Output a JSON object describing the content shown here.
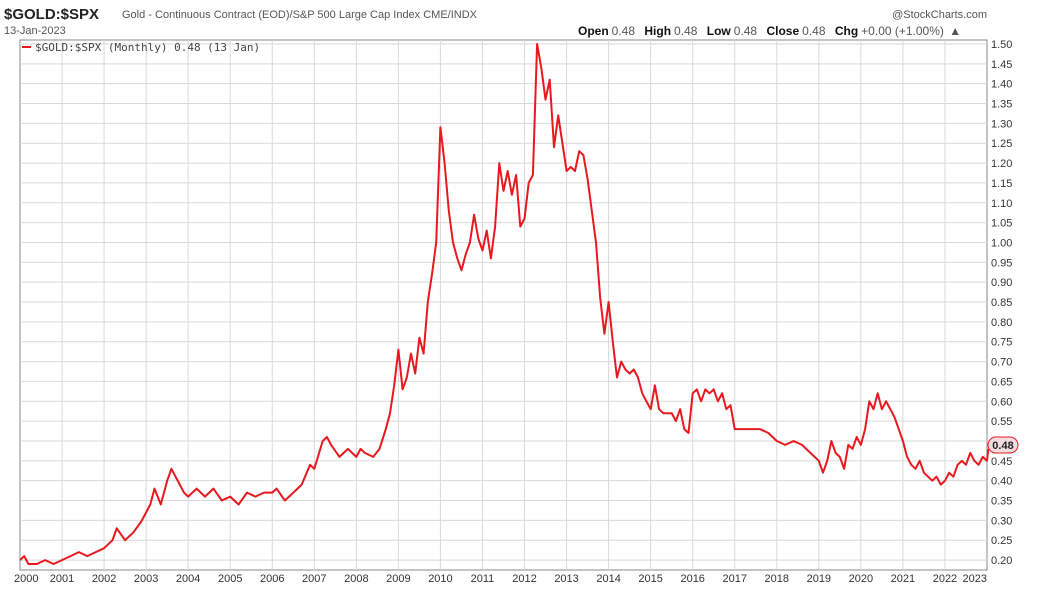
{
  "header": {
    "symbol": "$GOLD:$SPX",
    "description": "Gold - Continuous Contract (EOD)/S&P 500 Large Cap Index CME/INDX",
    "credit": "@StockCharts.com",
    "date": "13-Jan-2023",
    "ohlc": {
      "open_label": "Open",
      "open": "0.48",
      "high_label": "High",
      "high": "0.48",
      "low_label": "Low",
      "low": "0.48",
      "close_label": "Close",
      "close": "0.48",
      "chg_label": "Chg",
      "chg": "+0.00 (+1.00%)",
      "chg_arrow": "▲"
    }
  },
  "legend": {
    "text": "$GOLD:$SPX (Monthly) 0.48 (13 Jan)"
  },
  "last_value_label": "0.48",
  "colors": {
    "line": "#e8181e",
    "grid": "#d9d9d9",
    "axis": "#888888",
    "badge_bg": "#f2dede"
  },
  "chart_data": {
    "type": "line",
    "title": "$GOLD:$SPX",
    "x_tick_labels": [
      "2000",
      "2001",
      "2002",
      "2003",
      "2004",
      "2005",
      "2006",
      "2007",
      "2008",
      "2009",
      "2010",
      "2011",
      "2012",
      "2013",
      "2014",
      "2015",
      "2016",
      "2017",
      "2018",
      "2019",
      "2020",
      "2021",
      "2022",
      "2023"
    ],
    "y_tick_labels": [
      "0.20",
      "0.25",
      "0.30",
      "0.35",
      "0.40",
      "0.45",
      "0.50",
      "0.55",
      "0.60",
      "0.65",
      "0.70",
      "0.75",
      "0.80",
      "0.85",
      "0.90",
      "0.95",
      "1.00",
      "1.05",
      "1.10",
      "1.15",
      "1.20",
      "1.25",
      "1.30",
      "1.35",
      "1.40",
      "1.45",
      "1.50"
    ],
    "xlim": [
      2000,
      2023
    ],
    "ylim": [
      0.175,
      1.51
    ],
    "grid": true,
    "legend_position": "top-left",
    "series": [
      {
        "name": "$GOLD:$SPX",
        "points": [
          [
            2000.0,
            0.2
          ],
          [
            2000.1,
            0.21
          ],
          [
            2000.2,
            0.19
          ],
          [
            2000.4,
            0.19
          ],
          [
            2000.6,
            0.2
          ],
          [
            2000.8,
            0.19
          ],
          [
            2001.0,
            0.2
          ],
          [
            2001.2,
            0.21
          ],
          [
            2001.4,
            0.22
          ],
          [
            2001.6,
            0.21
          ],
          [
            2001.8,
            0.22
          ],
          [
            2002.0,
            0.23
          ],
          [
            2002.2,
            0.25
          ],
          [
            2002.3,
            0.28
          ],
          [
            2002.5,
            0.25
          ],
          [
            2002.7,
            0.27
          ],
          [
            2002.9,
            0.3
          ],
          [
            2003.0,
            0.32
          ],
          [
            2003.1,
            0.34
          ],
          [
            2003.2,
            0.38
          ],
          [
            2003.35,
            0.34
          ],
          [
            2003.5,
            0.4
          ],
          [
            2003.6,
            0.43
          ],
          [
            2003.75,
            0.4
          ],
          [
            2003.9,
            0.37
          ],
          [
            2004.0,
            0.36
          ],
          [
            2004.2,
            0.38
          ],
          [
            2004.4,
            0.36
          ],
          [
            2004.6,
            0.38
          ],
          [
            2004.8,
            0.35
          ],
          [
            2005.0,
            0.36
          ],
          [
            2005.2,
            0.34
          ],
          [
            2005.4,
            0.37
          ],
          [
            2005.6,
            0.36
          ],
          [
            2005.8,
            0.37
          ],
          [
            2006.0,
            0.37
          ],
          [
            2006.1,
            0.38
          ],
          [
            2006.3,
            0.35
          ],
          [
            2006.5,
            0.37
          ],
          [
            2006.7,
            0.39
          ],
          [
            2006.9,
            0.44
          ],
          [
            2007.0,
            0.43
          ],
          [
            2007.2,
            0.5
          ],
          [
            2007.3,
            0.51
          ],
          [
            2007.4,
            0.49
          ],
          [
            2007.6,
            0.46
          ],
          [
            2007.8,
            0.48
          ],
          [
            2007.9,
            0.47
          ],
          [
            2008.0,
            0.46
          ],
          [
            2008.1,
            0.48
          ],
          [
            2008.2,
            0.47
          ],
          [
            2008.4,
            0.46
          ],
          [
            2008.55,
            0.48
          ],
          [
            2008.7,
            0.53
          ],
          [
            2008.8,
            0.57
          ],
          [
            2008.9,
            0.64
          ],
          [
            2009.0,
            0.73
          ],
          [
            2009.1,
            0.63
          ],
          [
            2009.2,
            0.66
          ],
          [
            2009.3,
            0.72
          ],
          [
            2009.4,
            0.67
          ],
          [
            2009.5,
            0.76
          ],
          [
            2009.6,
            0.72
          ],
          [
            2009.7,
            0.85
          ],
          [
            2009.8,
            0.92
          ],
          [
            2009.9,
            1.0
          ],
          [
            2010.0,
            1.29
          ],
          [
            2010.1,
            1.2
          ],
          [
            2010.2,
            1.08
          ],
          [
            2010.3,
            1.0
          ],
          [
            2010.4,
            0.96
          ],
          [
            2010.5,
            0.93
          ],
          [
            2010.6,
            0.97
          ],
          [
            2010.7,
            1.0
          ],
          [
            2010.8,
            1.07
          ],
          [
            2010.9,
            1.01
          ],
          [
            2011.0,
            0.98
          ],
          [
            2011.1,
            1.03
          ],
          [
            2011.2,
            0.96
          ],
          [
            2011.3,
            1.04
          ],
          [
            2011.4,
            1.2
          ],
          [
            2011.5,
            1.13
          ],
          [
            2011.6,
            1.18
          ],
          [
            2011.7,
            1.12
          ],
          [
            2011.8,
            1.17
          ],
          [
            2011.9,
            1.04
          ],
          [
            2012.0,
            1.06
          ],
          [
            2012.1,
            1.15
          ],
          [
            2012.2,
            1.17
          ],
          [
            2012.3,
            1.5
          ],
          [
            2012.4,
            1.44
          ],
          [
            2012.5,
            1.36
          ],
          [
            2012.6,
            1.41
          ],
          [
            2012.7,
            1.24
          ],
          [
            2012.8,
            1.32
          ],
          [
            2012.9,
            1.25
          ],
          [
            2013.0,
            1.18
          ],
          [
            2013.1,
            1.19
          ],
          [
            2013.2,
            1.18
          ],
          [
            2013.3,
            1.23
          ],
          [
            2013.4,
            1.22
          ],
          [
            2013.5,
            1.16
          ],
          [
            2013.6,
            1.08
          ],
          [
            2013.7,
            1.0
          ],
          [
            2013.8,
            0.86
          ],
          [
            2013.9,
            0.77
          ],
          [
            2014.0,
            0.85
          ],
          [
            2014.1,
            0.75
          ],
          [
            2014.2,
            0.66
          ],
          [
            2014.3,
            0.7
          ],
          [
            2014.4,
            0.68
          ],
          [
            2014.5,
            0.67
          ],
          [
            2014.6,
            0.68
          ],
          [
            2014.7,
            0.66
          ],
          [
            2014.8,
            0.62
          ],
          [
            2014.9,
            0.6
          ],
          [
            2015.0,
            0.58
          ],
          [
            2015.1,
            0.64
          ],
          [
            2015.2,
            0.58
          ],
          [
            2015.3,
            0.57
          ],
          [
            2015.5,
            0.57
          ],
          [
            2015.6,
            0.55
          ],
          [
            2015.7,
            0.58
          ],
          [
            2015.8,
            0.53
          ],
          [
            2015.9,
            0.52
          ],
          [
            2016.0,
            0.62
          ],
          [
            2016.1,
            0.63
          ],
          [
            2016.2,
            0.6
          ],
          [
            2016.3,
            0.63
          ],
          [
            2016.4,
            0.62
          ],
          [
            2016.5,
            0.63
          ],
          [
            2016.6,
            0.6
          ],
          [
            2016.7,
            0.62
          ],
          [
            2016.8,
            0.58
          ],
          [
            2016.9,
            0.59
          ],
          [
            2017.0,
            0.53
          ],
          [
            2017.2,
            0.53
          ],
          [
            2017.4,
            0.53
          ],
          [
            2017.6,
            0.53
          ],
          [
            2017.8,
            0.52
          ],
          [
            2017.9,
            0.51
          ],
          [
            2018.0,
            0.5
          ],
          [
            2018.2,
            0.49
          ],
          [
            2018.4,
            0.5
          ],
          [
            2018.6,
            0.49
          ],
          [
            2018.8,
            0.47
          ],
          [
            2019.0,
            0.45
          ],
          [
            2019.1,
            0.42
          ],
          [
            2019.2,
            0.45
          ],
          [
            2019.3,
            0.5
          ],
          [
            2019.4,
            0.47
          ],
          [
            2019.5,
            0.46
          ],
          [
            2019.6,
            0.43
          ],
          [
            2019.7,
            0.49
          ],
          [
            2019.8,
            0.48
          ],
          [
            2019.9,
            0.51
          ],
          [
            2020.0,
            0.49
          ],
          [
            2020.1,
            0.53
          ],
          [
            2020.2,
            0.6
          ],
          [
            2020.3,
            0.58
          ],
          [
            2020.4,
            0.62
          ],
          [
            2020.5,
            0.58
          ],
          [
            2020.6,
            0.6
          ],
          [
            2020.7,
            0.58
          ],
          [
            2020.8,
            0.56
          ],
          [
            2020.9,
            0.53
          ],
          [
            2021.0,
            0.5
          ],
          [
            2021.1,
            0.46
          ],
          [
            2021.2,
            0.44
          ],
          [
            2021.3,
            0.43
          ],
          [
            2021.4,
            0.45
          ],
          [
            2021.5,
            0.42
          ],
          [
            2021.6,
            0.41
          ],
          [
            2021.7,
            0.4
          ],
          [
            2021.8,
            0.41
          ],
          [
            2021.9,
            0.39
          ],
          [
            2022.0,
            0.4
          ],
          [
            2022.1,
            0.42
          ],
          [
            2022.2,
            0.41
          ],
          [
            2022.3,
            0.44
          ],
          [
            2022.4,
            0.45
          ],
          [
            2022.5,
            0.44
          ],
          [
            2022.6,
            0.47
          ],
          [
            2022.7,
            0.45
          ],
          [
            2022.8,
            0.44
          ],
          [
            2022.9,
            0.46
          ],
          [
            2023.0,
            0.45
          ],
          [
            2023.03,
            0.48
          ]
        ]
      }
    ]
  }
}
